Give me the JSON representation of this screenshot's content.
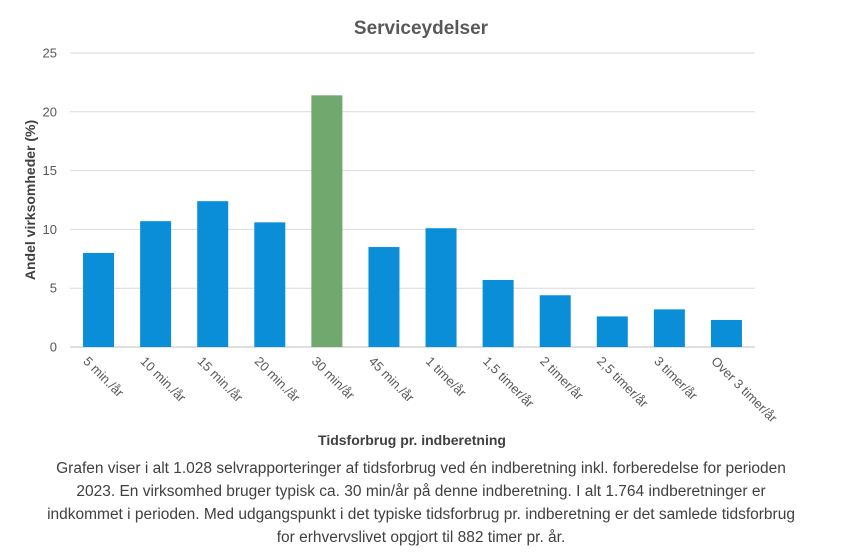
{
  "chart_data": {
    "type": "bar",
    "title": "Serviceydelser",
    "xlabel": "Tidsforbrug pr. indberetning",
    "ylabel": "Andel virksomheder  (%)",
    "ylim": [
      0,
      25
    ],
    "yticks": [
      0,
      5,
      10,
      15,
      20,
      25
    ],
    "grid": true,
    "categories": [
      "5 min./år",
      "10 min./år",
      "15 min./år",
      "20 min./år",
      "30 min/år",
      "45 min./år",
      "1 time/år",
      "1,5 timer/år",
      "2 timer/år",
      "2,5 timer/år",
      "3 timer/år",
      "Over 3 timer/år"
    ],
    "values": [
      8.0,
      10.7,
      12.4,
      10.6,
      21.4,
      8.5,
      10.1,
      5.7,
      4.4,
      2.6,
      3.2,
      2.3
    ],
    "colors": [
      "#0a8ed8",
      "#0a8ed8",
      "#0a8ed8",
      "#0a8ed8",
      "#70a86e",
      "#0a8ed8",
      "#0a8ed8",
      "#0a8ed8",
      "#0a8ed8",
      "#0a8ed8",
      "#0a8ed8",
      "#0a8ed8"
    ],
    "highlight_category": "30 min/år"
  },
  "caption": "Grafen viser i alt 1.028 selvrapporteringer af tidsforbrug ved én indberetning inkl. forberedelse for perioden 2023. En virksomhed bruger typisk ca. 30 min/år på denne indberetning. I alt 1.764 indberetninger er indkommet i perioden. Med udgangspunkt i det typiske tidsforbrug pr. indberetning er det samlede tidsforbrug for erhvervslivet opgjort til 882 timer pr. år."
}
